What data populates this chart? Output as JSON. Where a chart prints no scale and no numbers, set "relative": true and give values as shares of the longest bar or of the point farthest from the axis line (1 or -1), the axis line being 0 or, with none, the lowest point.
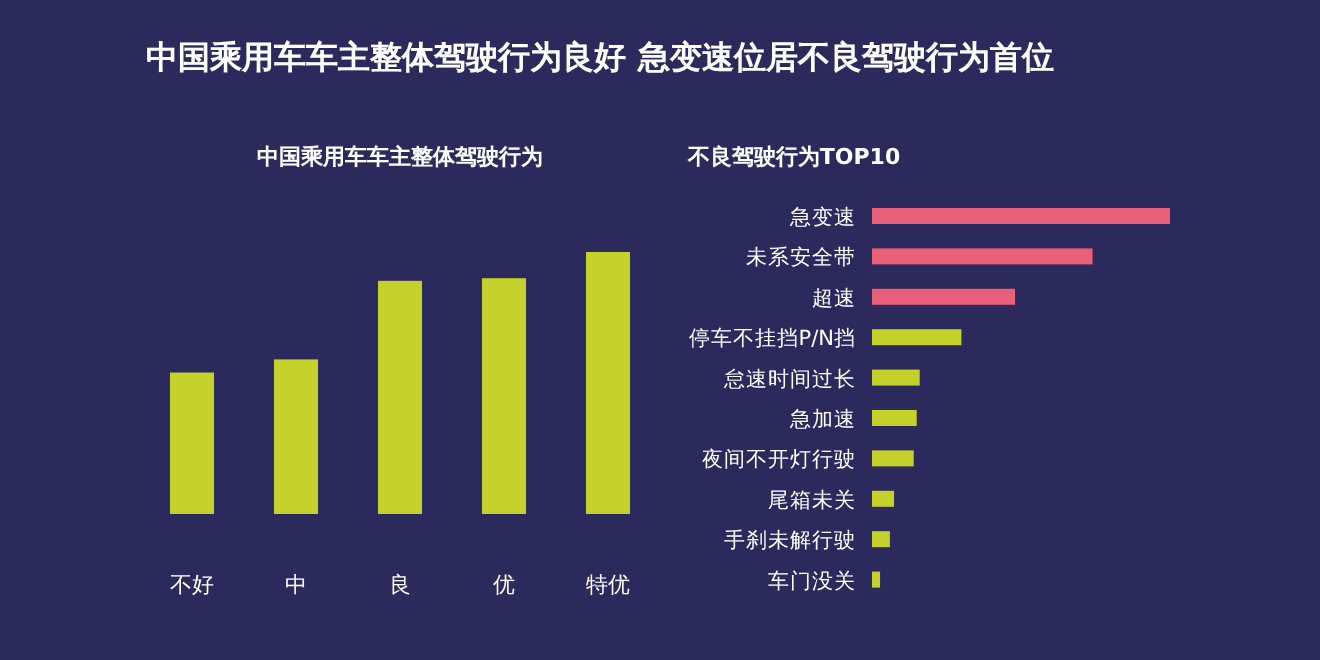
{
  "chart_data": [
    {
      "type": "other",
      "title": "中国乘用车车主整体驾驶行为良好 急变速位居不良驾驶行为首位"
    },
    {
      "type": "bar",
      "title": "中国乘用车车主整体驾驶行为",
      "relative": true,
      "categories": [
        "不好",
        "中",
        "良",
        "优",
        "特优"
      ],
      "values": [
        0.54,
        0.59,
        0.89,
        0.9,
        1
      ],
      "color": "#c5d12b"
    },
    {
      "type": "bar",
      "orientation": "horizontal",
      "relative": true,
      "title": "不良驾驶行为TOP10",
      "categories": [
        "急变速",
        "未系安全带",
        "超速",
        "停车不挂挡P/N挡",
        "怠速时间过长",
        "急加速",
        "夜间不开灯行驶",
        "尾箱未关",
        "手刹未解行驶",
        "车门没关"
      ],
      "values": [
        1,
        0.74,
        0.48,
        0.3,
        0.16,
        0.15,
        0.14,
        0.074,
        0.06,
        0.027
      ],
      "colors": [
        "#e8607a",
        "#e8607a",
        "#e8607a",
        "#c5d12b",
        "#c5d12b",
        "#c5d12b",
        "#c5d12b",
        "#c5d12b",
        "#c5d12b",
        "#c5d12b"
      ]
    }
  ]
}
